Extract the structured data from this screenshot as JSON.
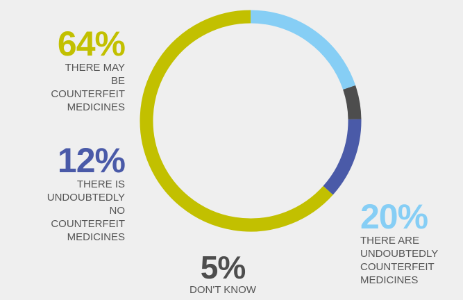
{
  "chart_data": {
    "type": "pie",
    "variant": "donut",
    "slices": [
      {
        "value": 64,
        "label": "64%",
        "text": "THERE MAY BE COUNTERFEIT MEDICINES",
        "color": "#c2c000"
      },
      {
        "value": 12,
        "label": "12%",
        "text": "THERE IS UNDOUBTEDLY NO COUNTERFEIT MEDICINES",
        "color": "#4a5aa8"
      },
      {
        "value": 5,
        "label": "5%",
        "text": "DON'T KNOW",
        "color": "#4d4d4d"
      },
      {
        "value": 20,
        "label": "20%",
        "text": "THERE ARE UNDOUBTEDLY COUNTERFEIT MEDICINES",
        "color": "#86cef5"
      }
    ],
    "legend": "none"
  }
}
